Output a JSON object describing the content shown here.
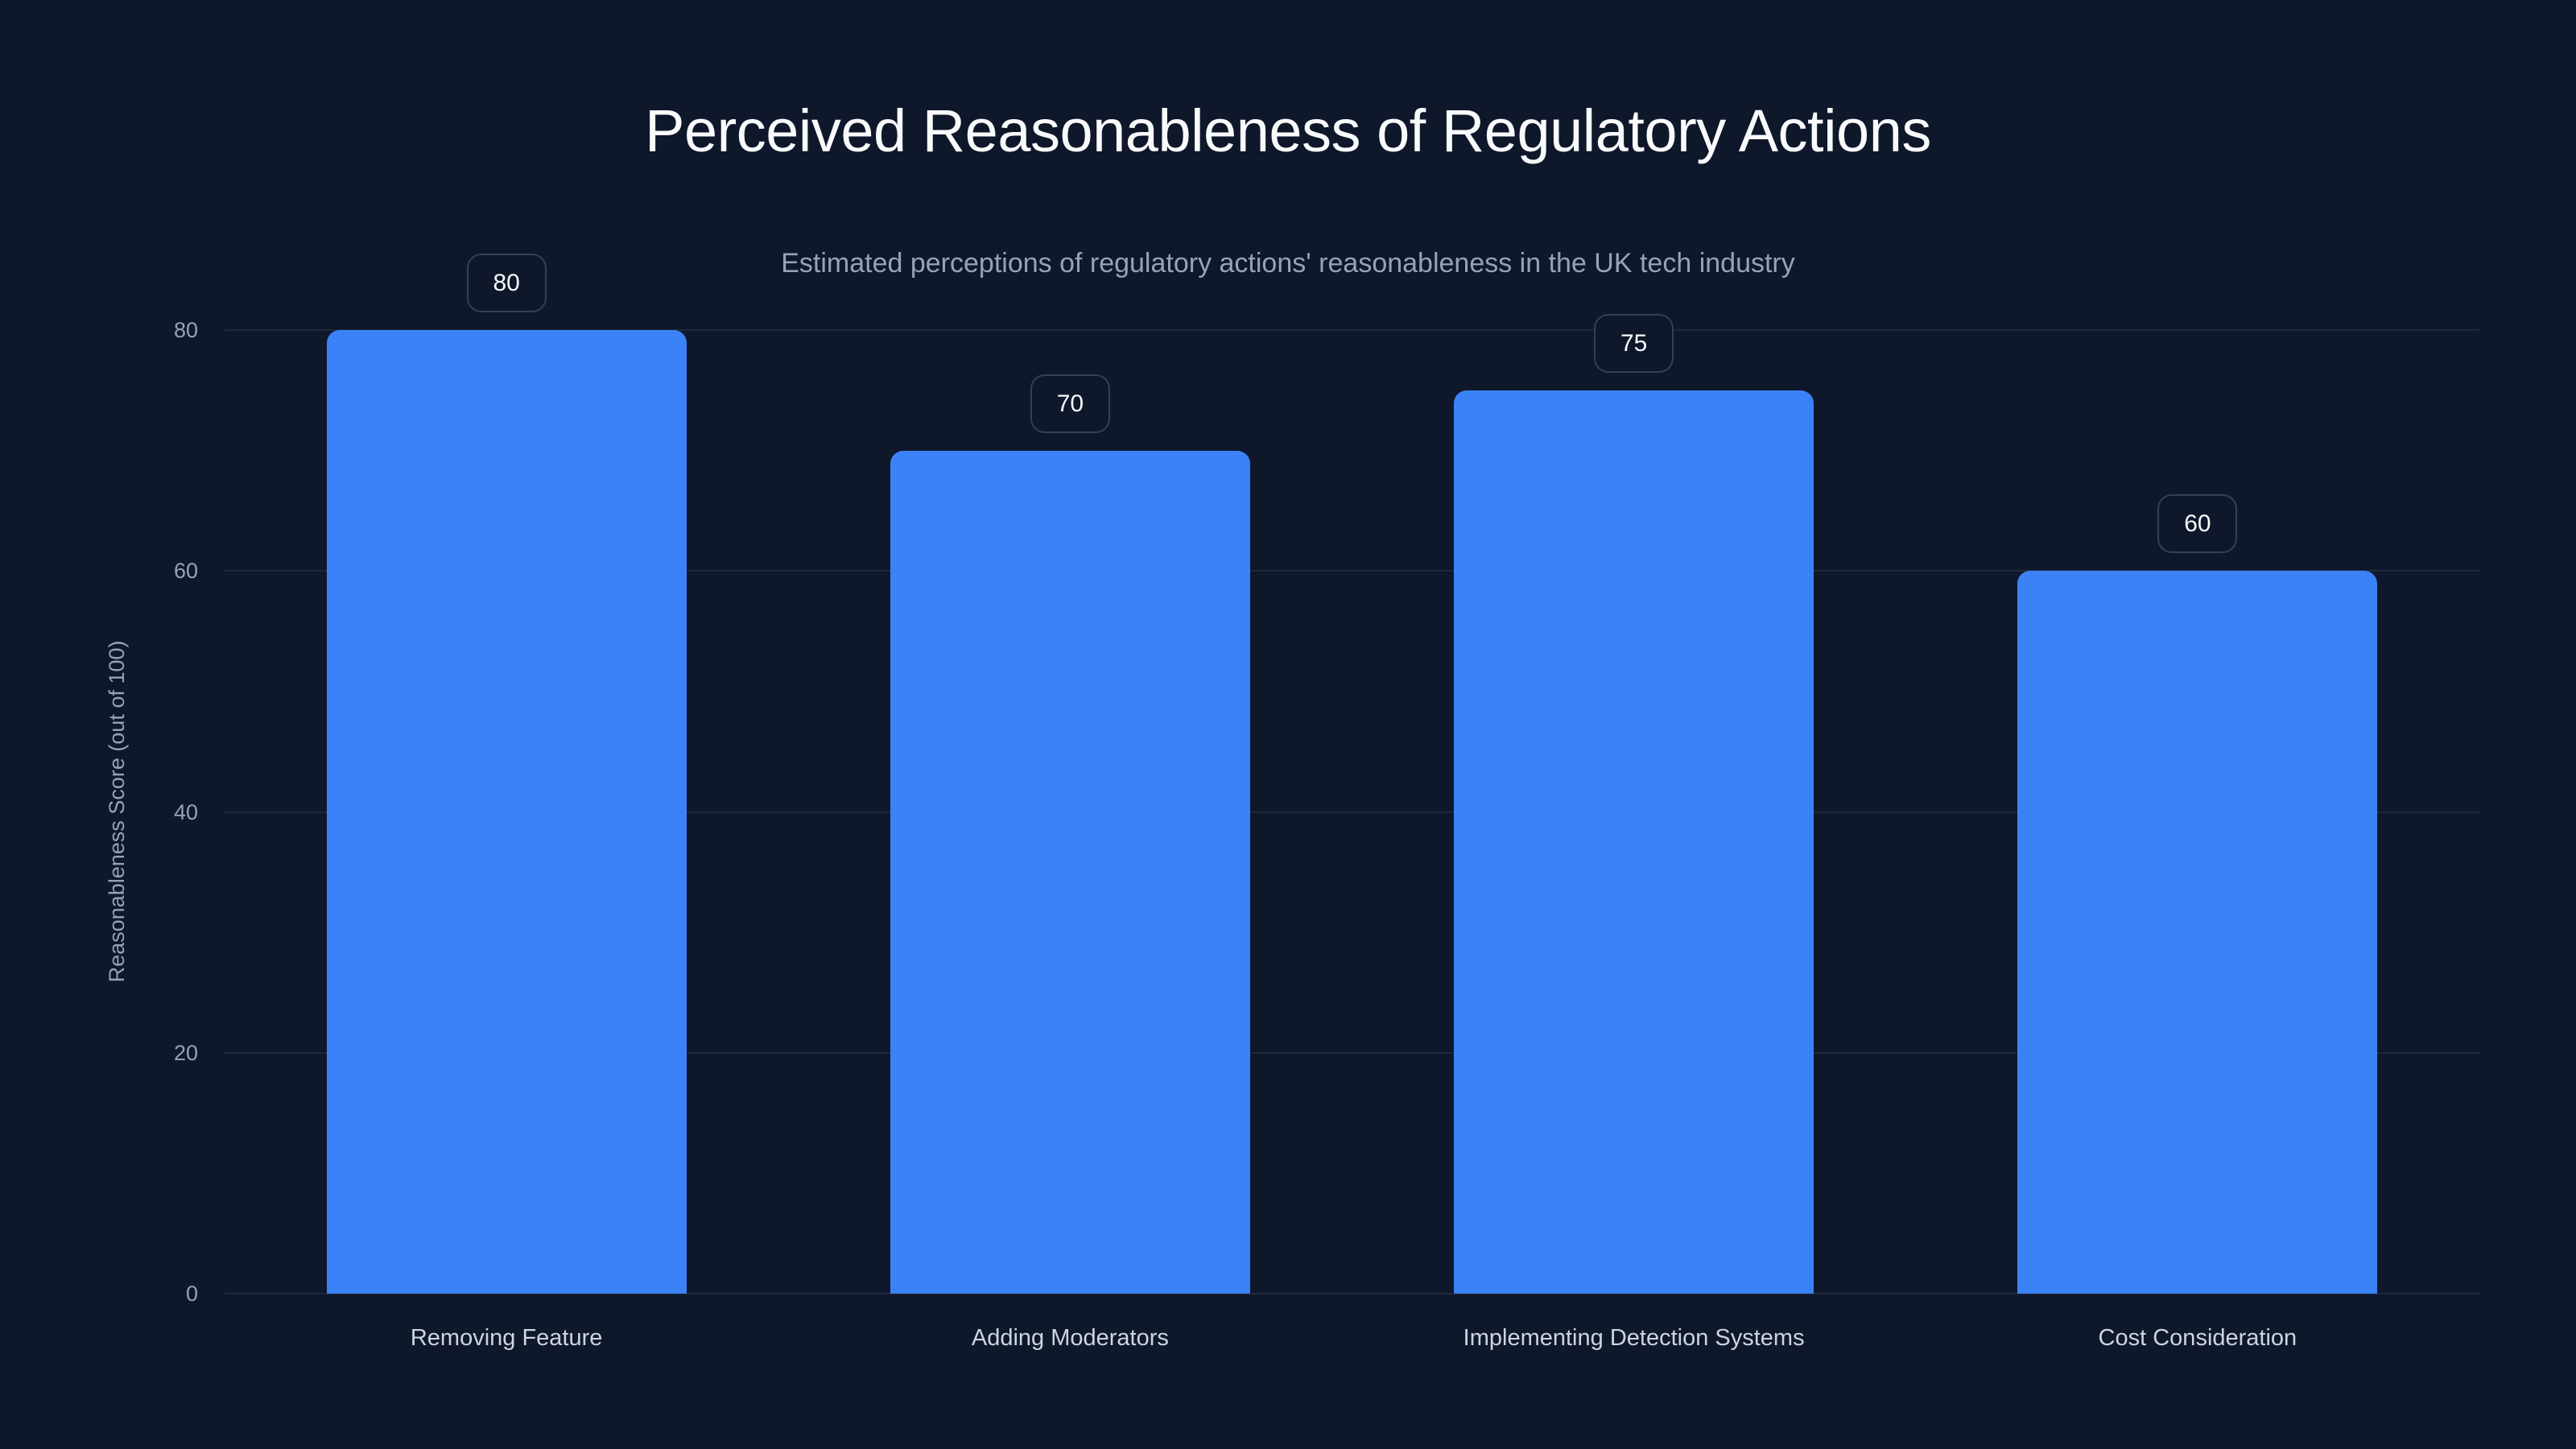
{
  "chart_data": {
    "type": "bar",
    "title": "Perceived Reasonableness of Regulatory Actions",
    "subtitle": "Estimated perceptions of regulatory actions' reasonableness in the UK tech industry",
    "xlabel": "",
    "ylabel": "Reasonableness Score (out of 100)",
    "categories": [
      "Removing Feature",
      "Adding Moderators",
      "Implementing Detection Systems",
      "Cost Consideration"
    ],
    "values": [
      80,
      70,
      75,
      60
    ],
    "value_labels": [
      "80",
      "70",
      "75",
      "60"
    ],
    "ylim": [
      0,
      80
    ],
    "yticks": [
      0,
      20,
      40,
      60,
      80
    ],
    "ytick_labels": [
      "0",
      "20",
      "40",
      "60",
      "80"
    ],
    "grid": true,
    "legend": null,
    "colors": {
      "background": "#0f172a",
      "bar": "#3b82f6",
      "gridline": "#1e293b",
      "title": "#f8fafc",
      "subtitle": "#94a3b8",
      "tick_label": "#94a3b8",
      "category_label": "#cbd5e1",
      "value_label_border": "#334155"
    }
  }
}
